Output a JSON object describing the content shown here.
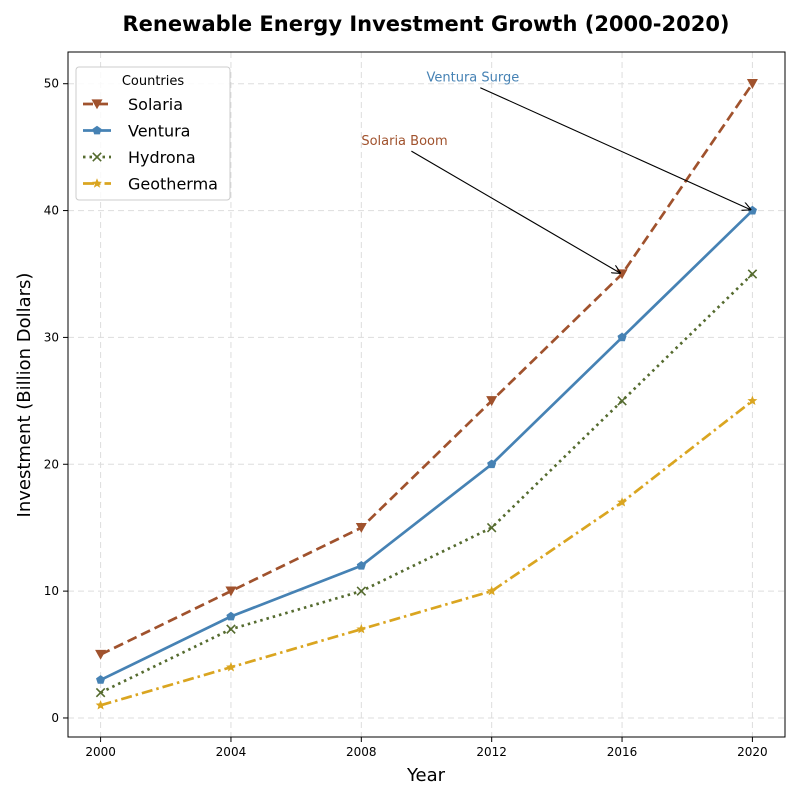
{
  "chart_data": {
    "type": "line",
    "title": "Renewable Energy Investment Growth (2000-2020)",
    "xlabel": "Year",
    "ylabel": "Investment (Billion Dollars)",
    "x": [
      2000,
      2004,
      2008,
      2012,
      2016,
      2020
    ],
    "xticks": [
      "2000",
      "2004",
      "2008",
      "2012",
      "2016",
      "2020"
    ],
    "yticks": [
      "0",
      "10",
      "20",
      "30",
      "40",
      "50"
    ],
    "xlim": [
      1999,
      2021
    ],
    "ylim": [
      -1.5,
      52.5
    ],
    "grid": true,
    "legend": {
      "title": "Countries",
      "placement": "top-left"
    },
    "series": [
      {
        "name": "Solaria",
        "values": [
          5,
          10,
          15,
          25,
          35,
          50
        ],
        "color": "#a0522d",
        "dash": "dashed",
        "marker": "triangle-down"
      },
      {
        "name": "Ventura",
        "values": [
          3,
          8,
          12,
          20,
          30,
          40
        ],
        "color": "#4682b4",
        "dash": "solid",
        "marker": "pentagon"
      },
      {
        "name": "Hydrona",
        "values": [
          2,
          7,
          10,
          15,
          25,
          35
        ],
        "color": "#556b2f",
        "dash": "dotted",
        "marker": "x"
      },
      {
        "name": "Geotherma",
        "values": [
          1,
          4,
          7,
          10,
          17,
          25
        ],
        "color": "#daa520",
        "dash": "dashdot",
        "marker": "star"
      }
    ],
    "annotations": [
      {
        "text": "Solaria Boom",
        "point": [
          2016,
          35
        ],
        "text_at": [
          2008,
          45
        ],
        "color": "#a0522d"
      },
      {
        "text": "Ventura Surge",
        "point": [
          2020,
          40
        ],
        "text_at": [
          2010,
          50
        ],
        "color": "#4682b4"
      }
    ]
  }
}
